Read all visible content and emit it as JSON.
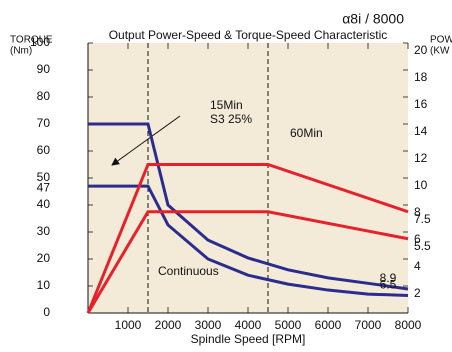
{
  "chart_data": {
    "type": "line",
    "title": "Output Power-Speed & Torque-Speed Characteristic",
    "model": "α8i / 8000",
    "y_label": [
      "TORQUE",
      "(Nm)"
    ],
    "y2_label": [
      "POW",
      "(KW"
    ],
    "x_label": "Spindle Speed [RPM]",
    "annotations": [
      "15Min",
      "S3 25%",
      "60Min",
      "Continuous"
    ],
    "xlim": [
      0,
      8000
    ],
    "xticks": [
      1000,
      2000,
      3000,
      4000,
      5000,
      6000,
      7000,
      8000
    ],
    "ylim": [
      0,
      100
    ],
    "yticks": [
      0,
      10,
      20,
      30,
      40,
      50,
      60,
      70,
      80,
      90,
      100
    ],
    "y2lim": [
      0,
      20
    ],
    "y2ticks": [
      2,
      4,
      6,
      8,
      10,
      12,
      14,
      16,
      18,
      20
    ],
    "markers_x": [
      1500,
      4500
    ],
    "background": "#f4ead8",
    "series": [
      {
        "name": "Torque 15Min",
        "color": "#2b2d8e",
        "x": [
          0,
          1500,
          2000,
          3000,
          4000,
          5000,
          6000,
          7000,
          8000
        ],
        "values": [
          70,
          70,
          40,
          27,
          20.4,
          16,
          13,
          11,
          8.9
        ],
        "end_label": "8.9"
      },
      {
        "name": "Torque Continuous",
        "color": "#2b2d8e",
        "x": [
          0,
          1500,
          2000,
          3000,
          4000,
          5000,
          6000,
          7000,
          8000
        ],
        "values": [
          47,
          47,
          32.6,
          20,
          14,
          10.7,
          8.5,
          7,
          6.5
        ],
        "start_label": "47",
        "end_label": "6.5"
      },
      {
        "name": "Power 15Min",
        "color": "#e8202a",
        "axis": "y2",
        "x": [
          0,
          1500,
          4500,
          8000
        ],
        "values": [
          0,
          11,
          11,
          7.5
        ],
        "end_label": "7.5"
      },
      {
        "name": "Power Continuous",
        "color": "#e8202a",
        "axis": "y2",
        "x": [
          0,
          1500,
          4500,
          8000
        ],
        "values": [
          0,
          7.5,
          7.5,
          5.5
        ],
        "end_label": "5.5"
      }
    ]
  }
}
